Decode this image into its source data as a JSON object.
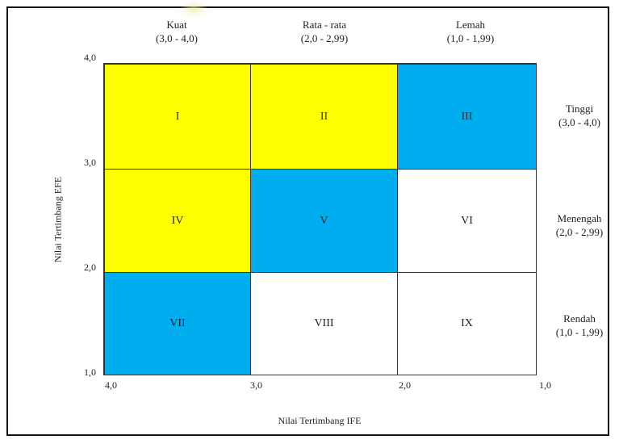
{
  "columns": [
    {
      "label": "Kuat",
      "range": "(3,0 - 4,0)"
    },
    {
      "label": "Rata - rata",
      "range": "(2,0 - 2,99)"
    },
    {
      "label": "Lemah",
      "range": "(1,0 - 1,99)"
    }
  ],
  "rows": [
    {
      "label": "Tinggi",
      "range": "(3,0 - 4,0)"
    },
    {
      "label": "Menengah",
      "range": "(2,0 - 2,99)"
    },
    {
      "label": "Rendah",
      "range": "(1,0 - 1,99)"
    }
  ],
  "cells": [
    {
      "numeral": "I",
      "color": "#ffff00"
    },
    {
      "numeral": "II",
      "color": "#ffff00"
    },
    {
      "numeral": "III",
      "color": "#00aeef"
    },
    {
      "numeral": "IV",
      "color": "#ffff00"
    },
    {
      "numeral": "V",
      "color": "#00aeef"
    },
    {
      "numeral": "VI",
      "color": "#ffffff"
    },
    {
      "numeral": "VII",
      "color": "#00aeef"
    },
    {
      "numeral": "VIII",
      "color": "#ffffff"
    },
    {
      "numeral": "IX",
      "color": "#ffffff"
    }
  ],
  "y_ticks": [
    "4,0",
    "3,0",
    "2,0",
    "1,0"
  ],
  "x_ticks": [
    "4,0",
    "3,0",
    "2,0",
    "1,0"
  ],
  "y_axis_title": "Nilai Tertimbang EFE",
  "x_axis_title": "Nilai Tertimbang IFE"
}
